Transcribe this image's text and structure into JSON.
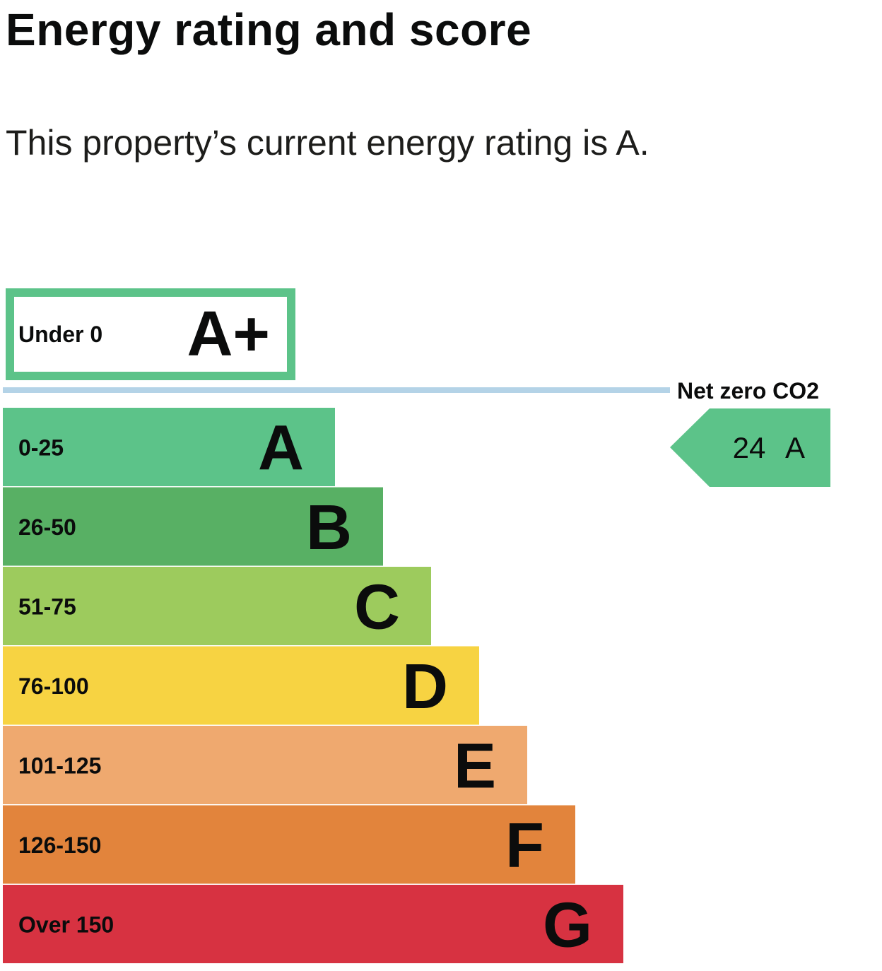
{
  "heading": "Energy rating and score",
  "summary": "This property’s current energy rating is A.",
  "chart_data": {
    "type": "bar",
    "title": "",
    "xlabel": "",
    "ylabel": "",
    "top_band": {
      "range": "Under 0",
      "letter": "A+",
      "color": "#5cc389"
    },
    "net_zero_label": "Net zero CO2",
    "bands": [
      {
        "range": "0-25",
        "letter": "A",
        "color": "#5cc389"
      },
      {
        "range": "26-50",
        "letter": "B",
        "color": "#58b064"
      },
      {
        "range": "51-75",
        "letter": "C",
        "color": "#9dcb5d"
      },
      {
        "range": "76-100",
        "letter": "D",
        "color": "#f7d342"
      },
      {
        "range": "101-125",
        "letter": "E",
        "color": "#efa96f"
      },
      {
        "range": "126-150",
        "letter": "F",
        "color": "#e2843c"
      },
      {
        "range": "Over 150",
        "letter": "G",
        "color": "#d73241"
      }
    ],
    "current": {
      "score": "24",
      "rating": "A",
      "color": "#5cc389"
    },
    "line_color": "#b4d3e7"
  }
}
